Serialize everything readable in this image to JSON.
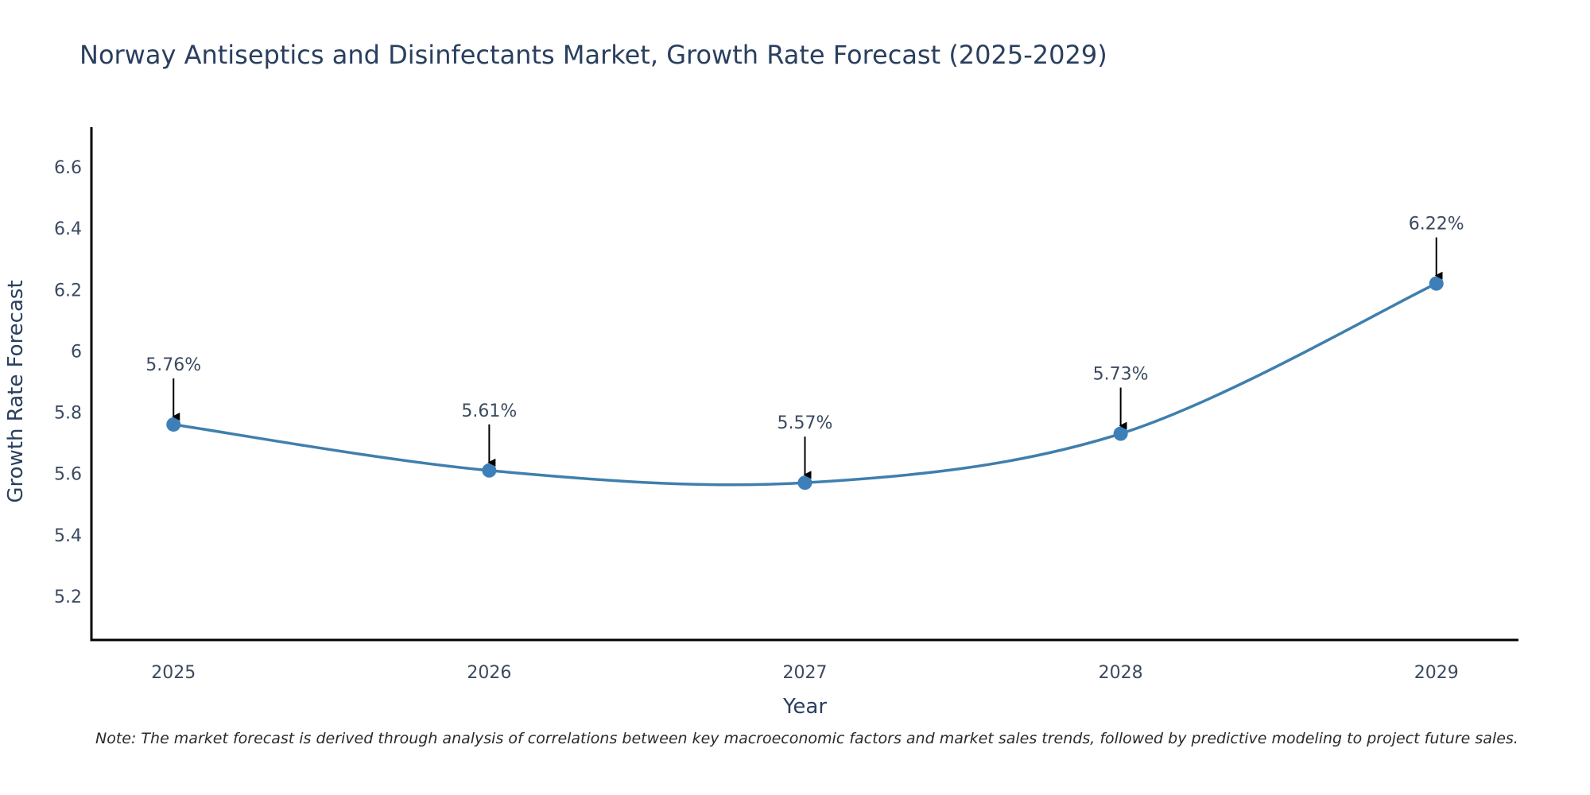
{
  "chart_data": {
    "type": "line",
    "title": "Norway Antiseptics and Disinfectants Market, Growth Rate Forecast (2025-2029)",
    "xlabel": "Year",
    "ylabel": "Growth Rate Forecast",
    "categories": [
      "2025",
      "2026",
      "2027",
      "2028",
      "2029"
    ],
    "series": [
      {
        "name": "Growth Rate Forecast",
        "values": [
          5.76,
          5.61,
          5.57,
          5.73,
          6.22
        ],
        "color": "#3f7fad",
        "marker_color": "#3d80b9"
      }
    ],
    "annotations": [
      "5.76%",
      "5.61%",
      "5.57%",
      "5.73%",
      "6.22%"
    ],
    "yticks": [
      5.2,
      5.4,
      5.6,
      5.8,
      6,
      6.2,
      6.4,
      6.6
    ],
    "ytick_labels": [
      "5.2",
      "5.4",
      "5.6",
      "5.8",
      "6",
      "6.2",
      "6.4",
      "6.6"
    ],
    "ylim": [
      5.057,
      6.73
    ],
    "xlim": [
      2024.74,
      2029.26
    ],
    "grid": false,
    "line_shape": "spline",
    "legend": "none"
  },
  "note": "Note: The market forecast is derived through analysis of correlations between key macroeconomic factors and market sales trends, followed by predictive modeling to project future sales."
}
